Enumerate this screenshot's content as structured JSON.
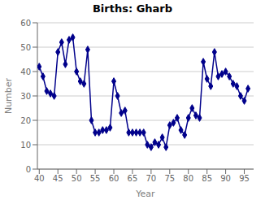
{
  "chart_data": {
    "type": "line",
    "title": "Births: Gharb",
    "x_label": "Year",
    "y_label": "Number",
    "x": [
      40,
      41,
      42,
      43,
      44,
      45,
      46,
      47,
      48,
      49,
      50,
      51,
      52,
      53,
      54,
      55,
      56,
      57,
      58,
      59,
      60,
      61,
      62,
      63,
      64,
      65,
      66,
      67,
      68,
      69,
      70,
      71,
      72,
      73,
      74,
      75,
      76,
      77,
      78,
      79,
      80,
      81,
      82,
      83,
      84,
      85,
      86,
      87,
      88,
      89,
      90,
      91,
      92,
      93,
      94,
      95,
      96
    ],
    "values": [
      42,
      38,
      32,
      31,
      30,
      48,
      52,
      43,
      53,
      54,
      40,
      36,
      35,
      49,
      20,
      15,
      15,
      16,
      16,
      17,
      36,
      30,
      23,
      24,
      15,
      15,
      15,
      15,
      15,
      10,
      9,
      11,
      10,
      13,
      9,
      18,
      19,
      21,
      16,
      14,
      21,
      25,
      22,
      21,
      44,
      37,
      34,
      48,
      38,
      39,
      40,
      38,
      35,
      34,
      30,
      28,
      33
    ],
    "color": "#00008B",
    "marker": "diamond",
    "xlim": [
      39.5,
      97.5
    ],
    "ylim": [
      0,
      60
    ],
    "xticks": [
      40,
      45,
      50,
      55,
      60,
      65,
      70,
      75,
      80,
      85,
      90,
      95
    ],
    "yticks": [
      0,
      10,
      20,
      30,
      40,
      50,
      60
    ],
    "grid": true
  }
}
